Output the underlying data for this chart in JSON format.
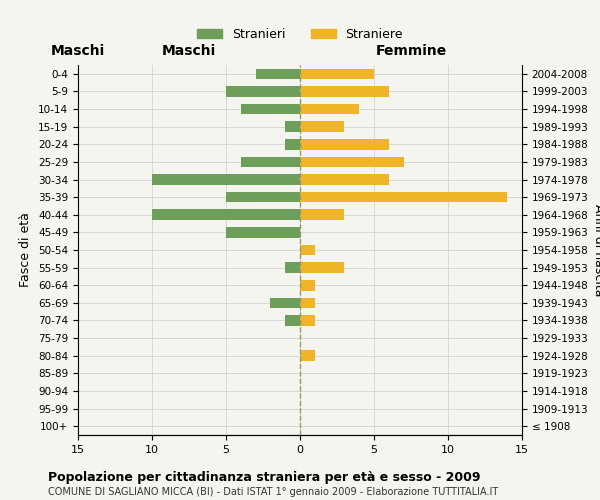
{
  "age_groups": [
    "100+",
    "95-99",
    "90-94",
    "85-89",
    "80-84",
    "75-79",
    "70-74",
    "65-69",
    "60-64",
    "55-59",
    "50-54",
    "45-49",
    "40-44",
    "35-39",
    "30-34",
    "25-29",
    "20-24",
    "15-19",
    "10-14",
    "5-9",
    "0-4"
  ],
  "birth_years": [
    "≤ 1908",
    "1909-1913",
    "1914-1918",
    "1919-1923",
    "1924-1928",
    "1929-1933",
    "1934-1938",
    "1939-1943",
    "1944-1948",
    "1949-1953",
    "1954-1958",
    "1959-1963",
    "1964-1968",
    "1969-1973",
    "1974-1978",
    "1979-1983",
    "1984-1988",
    "1989-1993",
    "1994-1998",
    "1999-2003",
    "2004-2008"
  ],
  "males": [
    0,
    0,
    0,
    0,
    0,
    0,
    1,
    2,
    0,
    1,
    0,
    5,
    10,
    5,
    10,
    4,
    1,
    1,
    4,
    5,
    3
  ],
  "females": [
    0,
    0,
    0,
    0,
    1,
    0,
    1,
    1,
    1,
    3,
    1,
    0,
    3,
    14,
    6,
    7,
    6,
    3,
    4,
    6,
    5
  ],
  "male_color": "#6d9e5a",
  "female_color": "#f0b429",
  "background_color": "#f5f5f0",
  "grid_color": "#cccccc",
  "dashed_line_color": "#999966",
  "xlim": 15,
  "title": "Popolazione per cittadinanza straniera per età e sesso - 2009",
  "subtitle": "COMUNE DI SAGLIANO MICCA (BI) - Dati ISTAT 1° gennaio 2009 - Elaborazione TUTTITALIA.IT",
  "legend_stranieri": "Stranieri",
  "legend_straniere": "Straniere",
  "ylabel_left": "Fasce di età",
  "ylabel_right": "Anni di nascita",
  "xlabel_left": "Maschi",
  "xlabel_right": "Femmine"
}
